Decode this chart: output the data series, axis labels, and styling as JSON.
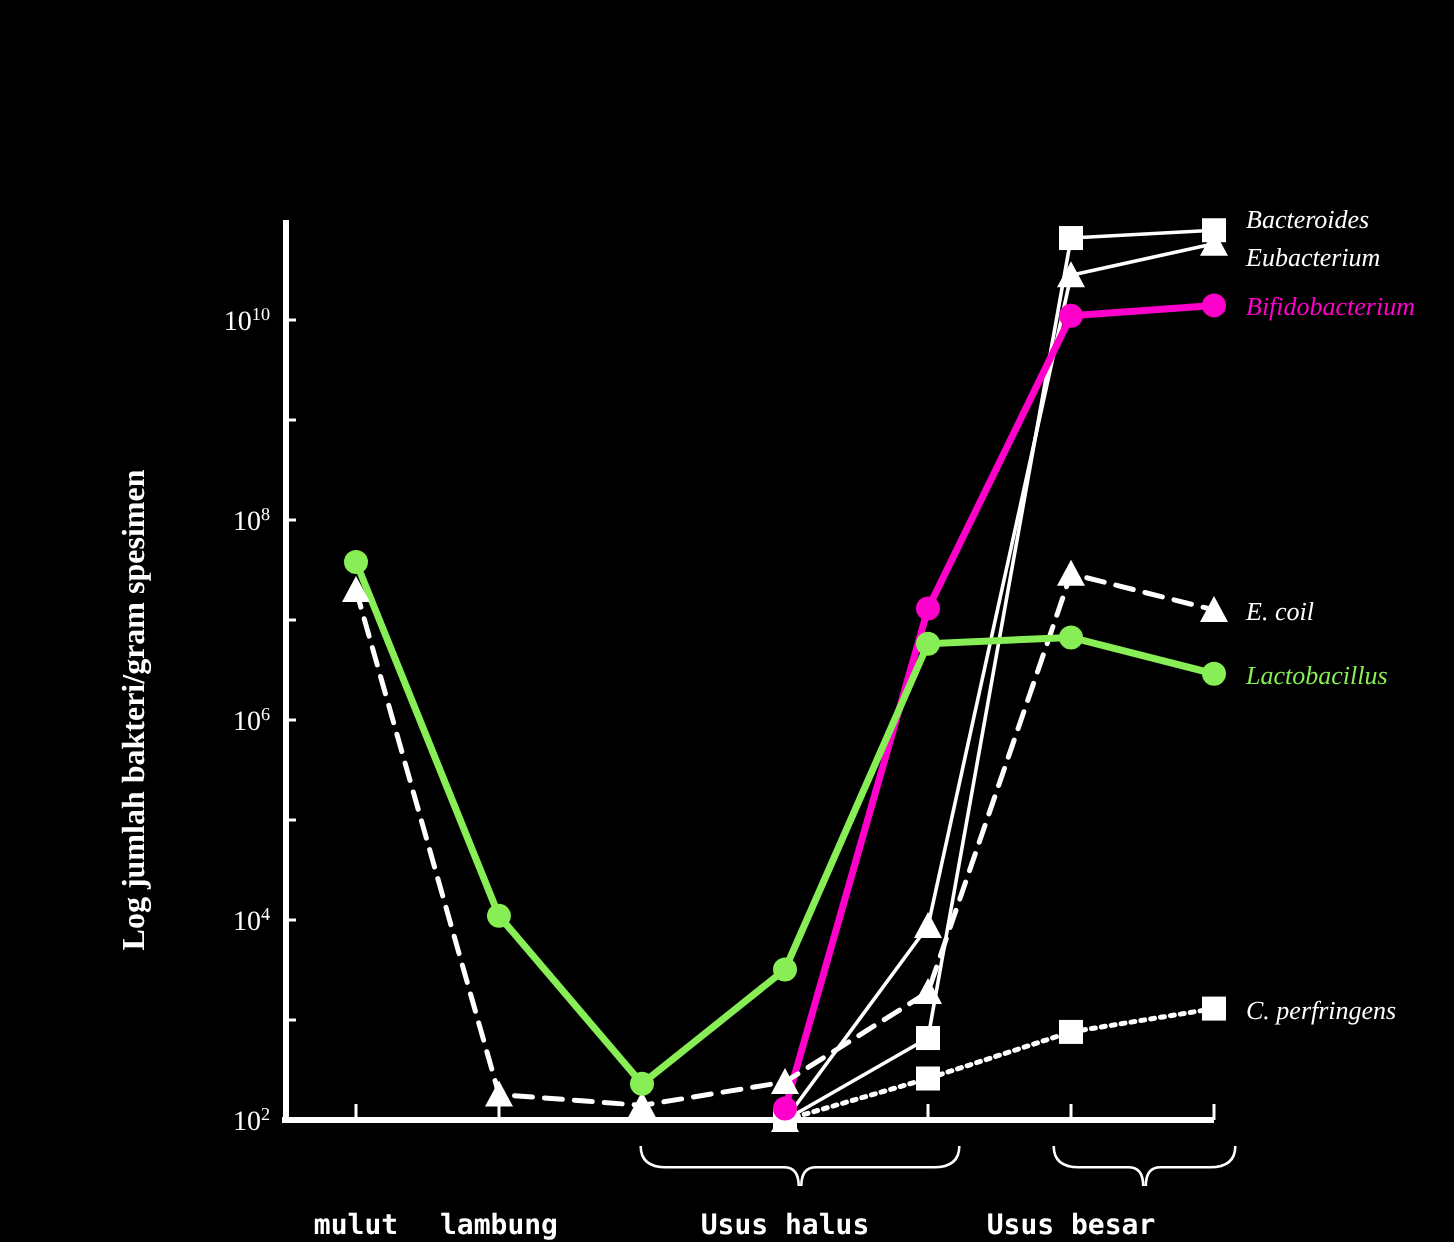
{
  "chart_data": {
    "type": "line",
    "ylabel": "Log jumlah bakteri/gram spesimen",
    "categories": [
      "mulut",
      "lambung",
      null,
      "Usus halus",
      null,
      "Usus besar",
      null
    ],
    "log": true,
    "ylim": [
      100,
      100000000000
    ],
    "yticks": [
      {
        "value": 100,
        "label": "10$^{2}$"
      },
      {
        "value": 1000,
        "label": null
      },
      {
        "value": 10000,
        "label": "10$^{4}$"
      },
      {
        "value": 100000,
        "label": null
      },
      {
        "value": 1000000,
        "label": "10$^{6}$"
      },
      {
        "value": 10000000,
        "label": null
      },
      {
        "value": 100000000,
        "label": "10$^{8}$"
      },
      {
        "value": 1000000000,
        "label": null
      },
      {
        "value": 10000000000,
        "label": "10$^{10}$"
      }
    ],
    "grid": false,
    "series": [
      {
        "name": "Bacteroides",
        "color": "#ffffff",
        "marker": "square",
        "line_style": "solid",
        "values": [
          null,
          null,
          null,
          100,
          660,
          66000000000,
          79000000000
        ]
      },
      {
        "name": "Eubacterium",
        "color": "#ffffff",
        "marker": "triangle",
        "line_style": "solid",
        "values": [
          null,
          null,
          null,
          100,
          8700,
          28000000000,
          58000000000
        ]
      },
      {
        "name": "Bifidobacterium",
        "color": "#ff00cc",
        "marker": "circle",
        "line_style": "solid",
        "values": [
          null,
          null,
          null,
          130,
          13000000,
          11000000000,
          14000000000
        ]
      },
      {
        "name": "E. coil",
        "color": "#ffffff",
        "marker": "triangle",
        "line_style": "dashed",
        "values": [
          20000000,
          180,
          140,
          240,
          1900,
          29000000,
          12600000
        ]
      },
      {
        "name": "Lactobacillus",
        "color": "#88ee55",
        "marker": "circle",
        "line_style": "solid",
        "values": [
          38000000,
          11000,
          230,
          3200,
          5800000,
          6700000,
          2900000
        ]
      },
      {
        "name": "C. perfringens",
        "color": "#ffffff",
        "marker": "square",
        "line_style": "dotted",
        "values": [
          null,
          null,
          null,
          100,
          260,
          760,
          1300
        ]
      }
    ]
  }
}
